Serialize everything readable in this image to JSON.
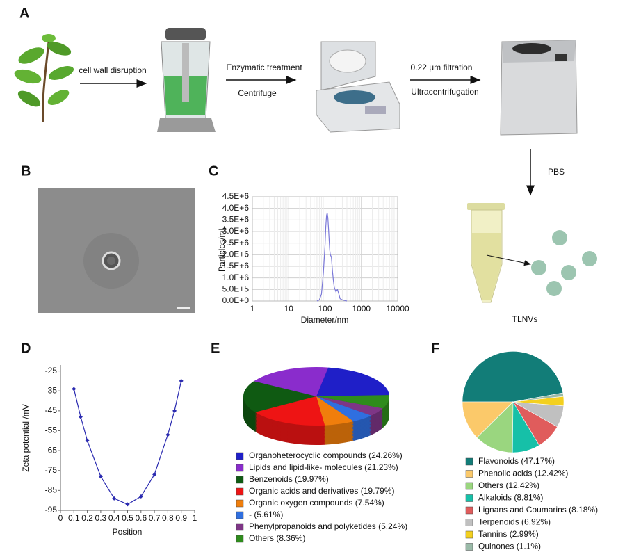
{
  "panel_labels": [
    "A",
    "B",
    "C",
    "D",
    "E",
    "F"
  ],
  "workflow": {
    "step1": "cell wall disruption",
    "step2_top": "Enzymatic treatment",
    "step2_bottom": "Centrifuge",
    "step3_top": "0.22 μm filtration",
    "step3_bottom": "Ultracentrifugation",
    "step4": "PBS",
    "product": "TLNVs"
  },
  "chart_data": [
    {
      "type": "line",
      "xlabel": "Diameter/nm",
      "ylabel": "Particles/mL",
      "log_x": true,
      "grid": true,
      "color": "#7a78d8",
      "x": [
        60,
        70,
        80,
        90,
        100,
        105,
        110,
        115,
        120,
        125,
        130,
        135,
        140,
        150,
        160,
        170,
        180,
        200,
        220,
        240,
        260,
        300,
        400
      ],
      "values": [
        0,
        50000,
        300000,
        1200000,
        2400000,
        3200000,
        3700000,
        3800000,
        3600000,
        3100000,
        2600000,
        2200000,
        2000000,
        1900000,
        1300000,
        900000,
        600000,
        400000,
        500000,
        300000,
        100000,
        50000,
        0
      ],
      "xlim": [
        1,
        10000
      ],
      "xticks": [
        1,
        10,
        100,
        1000,
        10000
      ],
      "ylim": [
        0,
        4500000
      ],
      "yticks": [
        {
          "value": 0,
          "label": "0.0E+0"
        },
        {
          "value": 500000,
          "label": "5.0E+5"
        },
        {
          "value": 1000000,
          "label": "1.0E+6"
        },
        {
          "value": 1500000,
          "label": "1.5E+6"
        },
        {
          "value": 2000000,
          "label": "2.0E+6"
        },
        {
          "value": 2500000,
          "label": "2.5E+6"
        },
        {
          "value": 3000000,
          "label": "3.0E+6"
        },
        {
          "value": 3500000,
          "label": "3.5E+6"
        },
        {
          "value": 4000000,
          "label": "4.0E+6"
        },
        {
          "value": 4500000,
          "label": "4.5E+6"
        }
      ]
    },
    {
      "type": "line",
      "xlabel": "Position",
      "ylabel": "Zeta potential /mV",
      "grid": false,
      "markers": true,
      "color": "#2a2ab0",
      "x": [
        0.1,
        0.15,
        0.2,
        0.3,
        0.4,
        0.5,
        0.6,
        0.7,
        0.8,
        0.85,
        0.9
      ],
      "values": [
        -34,
        -48,
        -60,
        -78,
        -89,
        -92,
        -88,
        -77,
        -57,
        -45,
        -30
      ],
      "xlim": [
        0,
        1
      ],
      "xticks": [
        0,
        0.1,
        0.2,
        0.3,
        0.4,
        0.5,
        0.6,
        0.7,
        0.8,
        0.9,
        1
      ],
      "ylim": [
        -95,
        -22
      ],
      "yticks": [
        -25,
        -35,
        -45,
        -55,
        -65,
        -75,
        -85,
        -95
      ]
    },
    {
      "type": "pie",
      "three_d": true,
      "categories": [
        "Organoheterocyclic compounds (24.26%)",
        "Lipids and lipid-like- molecules (21.23%)",
        "Benzenoids (19.97%)",
        "Organic acids and derivatives (19.79%)",
        "Organic oxygen compounds (7.54%)",
        " - (5.61%)",
        "Phenylpropanoids and polyketides (5.24%)",
        "Others (8.36%)"
      ],
      "values": [
        24.26,
        21.23,
        19.97,
        19.79,
        7.54,
        5.61,
        5.24,
        8.36
      ],
      "colors": [
        "#1f1fc8",
        "#8a2ccc",
        "#0f5a12",
        "#ee1414",
        "#f07e0c",
        "#2f6fe0",
        "#7e3686",
        "#2e8c1c"
      ]
    },
    {
      "type": "pie",
      "three_d": false,
      "categories": [
        "Flavonoids (47.17%)",
        "Phenolic acids (12.42%)",
        "Others (12.42%)",
        "Alkaloids (8.81%)",
        "Lignans and Coumarins (8.18%)",
        "Terpenoids (6.92%)",
        "Tannins (2.99%)",
        "Quinones (1.1%)"
      ],
      "values": [
        47.17,
        12.42,
        12.42,
        8.81,
        8.18,
        6.92,
        2.99,
        1.1
      ],
      "colors": [
        "#127d78",
        "#fbc96a",
        "#9ad67f",
        "#16c0a8",
        "#e05c5c",
        "#c0c0c0",
        "#f3d01f",
        "#9abaa8"
      ]
    }
  ]
}
